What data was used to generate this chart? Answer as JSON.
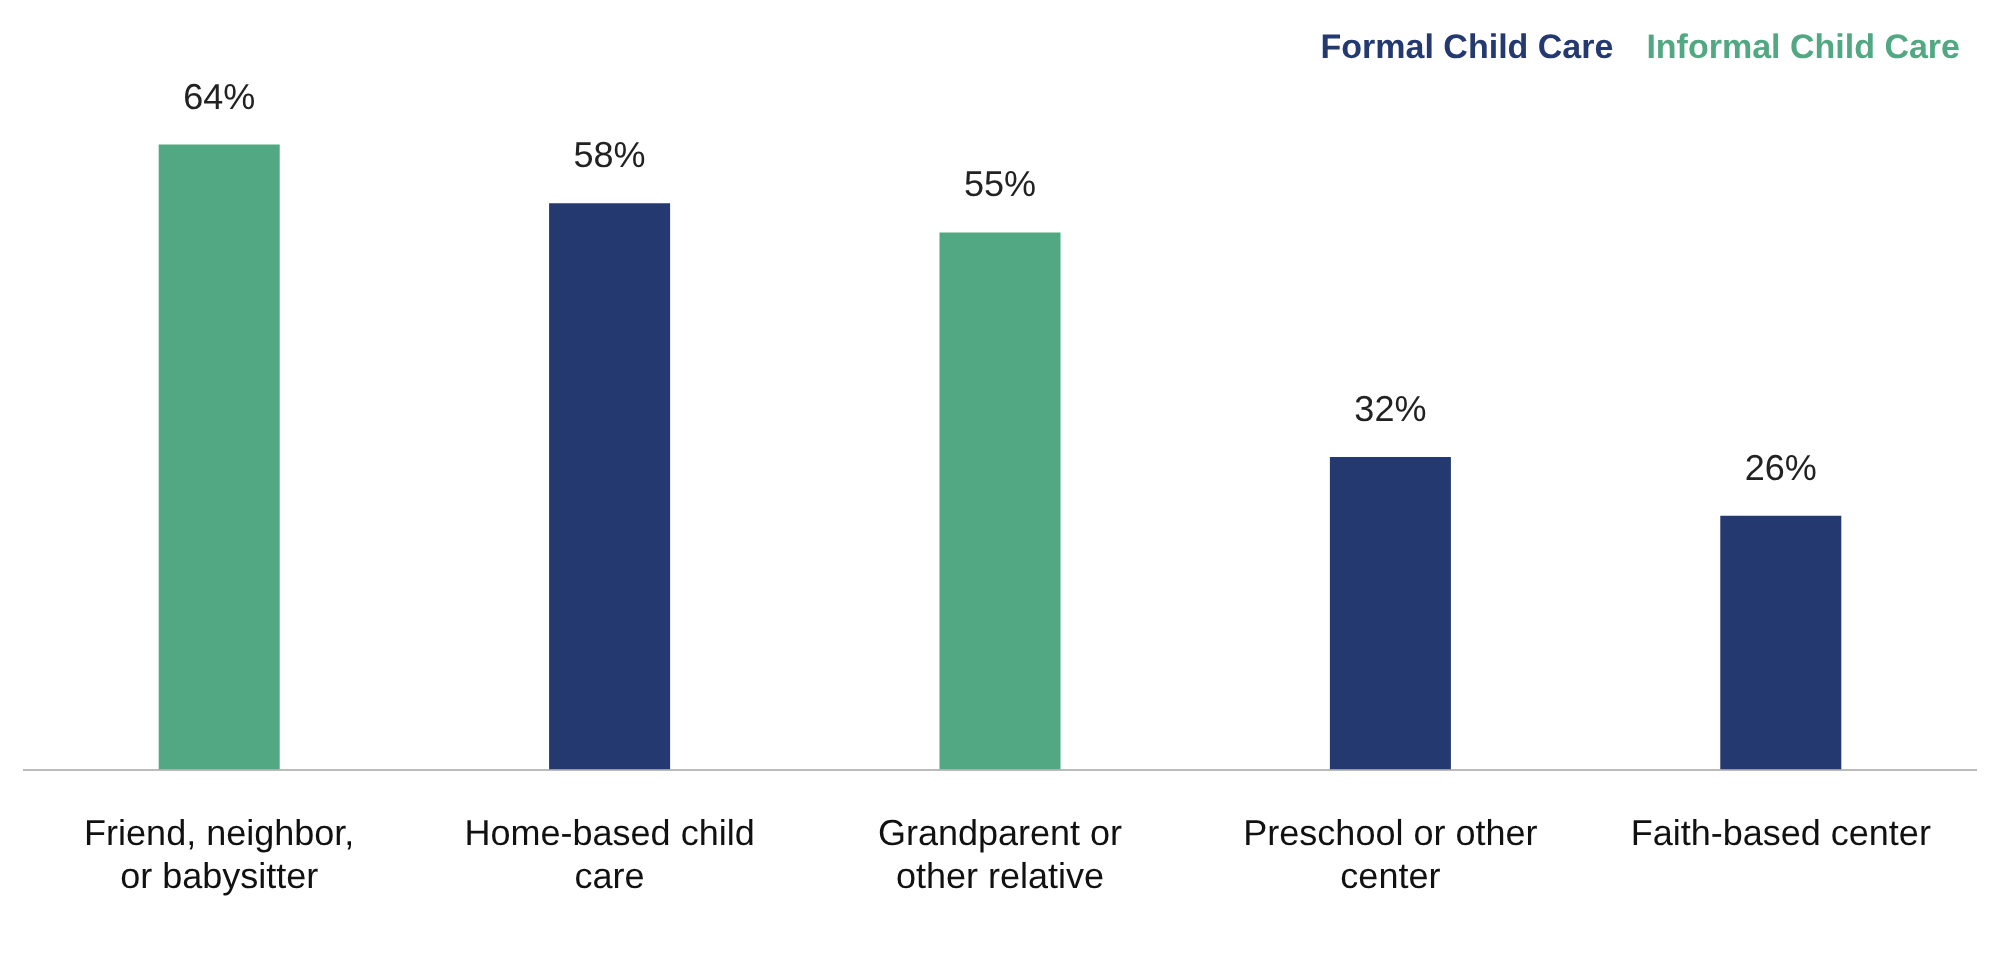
{
  "chart_data": {
    "type": "bar",
    "categories": [
      "Friend, neighbor, or babysitter",
      "Home-based child care",
      "Grandparent or other relative",
      "Preschool or other center",
      "Faith-based center"
    ],
    "series": [
      {
        "name": "Formal Child Care",
        "color": "#233970",
        "values": [
          null,
          58,
          null,
          32,
          26
        ],
        "value_labels": [
          null,
          "58%",
          null,
          "32%",
          "26%"
        ]
      },
      {
        "name": "Informal Child Care",
        "color": "#52a883",
        "values": [
          64,
          null,
          55,
          null,
          null
        ],
        "value_labels": [
          "64%",
          null,
          "55%",
          null,
          null
        ]
      }
    ],
    "legend": "top right",
    "grid": false
  }
}
